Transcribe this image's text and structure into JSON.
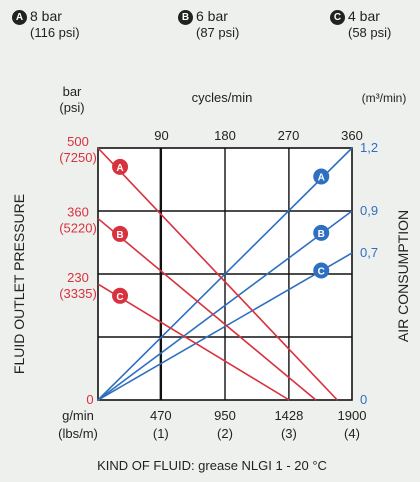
{
  "legend": [
    {
      "letter": "A",
      "bar": "8 bar",
      "psi": "(116 psi)"
    },
    {
      "letter": "B",
      "bar": "6 bar",
      "psi": "(87 psi)"
    },
    {
      "letter": "C",
      "bar": "4 bar",
      "psi": "(58 psi)"
    }
  ],
  "colors": {
    "pressure": "#d8323e",
    "air": "#2f6fc0",
    "grid": "#111111",
    "plot_bg": "#ffffff"
  },
  "chart_data": {
    "type": "line",
    "ylabel_left": "FLUID OUTLET PRESSURE",
    "ylabel_right": "AIR CONSUMPTION",
    "unit_left": [
      "bar",
      "(psi)"
    ],
    "unit_top": "cycles/min",
    "unit_right": "(m³/min)",
    "unit_bottom": [
      "g/min",
      "(lbs/m)"
    ],
    "footnote": "KIND OF FLUID: grease NLGI 1 - 20 °C",
    "x": {
      "range": [
        0,
        1900
      ],
      "ticks": [
        {
          "value": 470,
          "label": "470",
          "sub": "(1)"
        },
        {
          "value": 950,
          "label": "950",
          "sub": "(2)"
        },
        {
          "value": 1428,
          "label": "1428",
          "sub": "(3)"
        },
        {
          "value": 1900,
          "label": "1900",
          "sub": "(4)"
        }
      ]
    },
    "x_top": {
      "range": [
        0,
        360
      ],
      "ticks": [
        {
          "value": 90,
          "label": "90"
        },
        {
          "value": 180,
          "label": "180"
        },
        {
          "value": 270,
          "label": "270"
        },
        {
          "value": 360,
          "label": "360"
        }
      ]
    },
    "y_left": {
      "range": [
        0,
        500
      ],
      "ticks": [
        {
          "value": 0,
          "label": "0",
          "sub": ""
        },
        {
          "value": 230,
          "label": "230",
          "sub": "(3335)"
        },
        {
          "value": 360,
          "label": "360",
          "sub": "(5220)"
        },
        {
          "value": 500,
          "label": "500",
          "sub": "(7250)"
        }
      ]
    },
    "y_right": {
      "range": [
        0,
        1.2
      ],
      "ticks": [
        {
          "value": 0,
          "label": "0"
        },
        {
          "value": 0.7,
          "label": "0,7"
        },
        {
          "value": 0.9,
          "label": "0,9"
        },
        {
          "value": 1.2,
          "label": "1,2"
        }
      ]
    },
    "series_pressure": [
      {
        "name": "A",
        "points": [
          [
            0,
            500
          ],
          [
            1790,
            0
          ]
        ]
      },
      {
        "name": "B",
        "points": [
          [
            0,
            360
          ],
          [
            1630,
            0
          ]
        ]
      },
      {
        "name": "C",
        "points": [
          [
            0,
            230
          ],
          [
            1430,
            0
          ]
        ]
      }
    ],
    "series_air": [
      {
        "name": "A",
        "points": [
          [
            0,
            0
          ],
          [
            1900,
            1.2
          ]
        ]
      },
      {
        "name": "B",
        "points": [
          [
            0,
            0
          ],
          [
            1900,
            0.9
          ]
        ]
      },
      {
        "name": "C",
        "points": [
          [
            0,
            0
          ],
          [
            1900,
            0.7
          ]
        ]
      }
    ]
  }
}
